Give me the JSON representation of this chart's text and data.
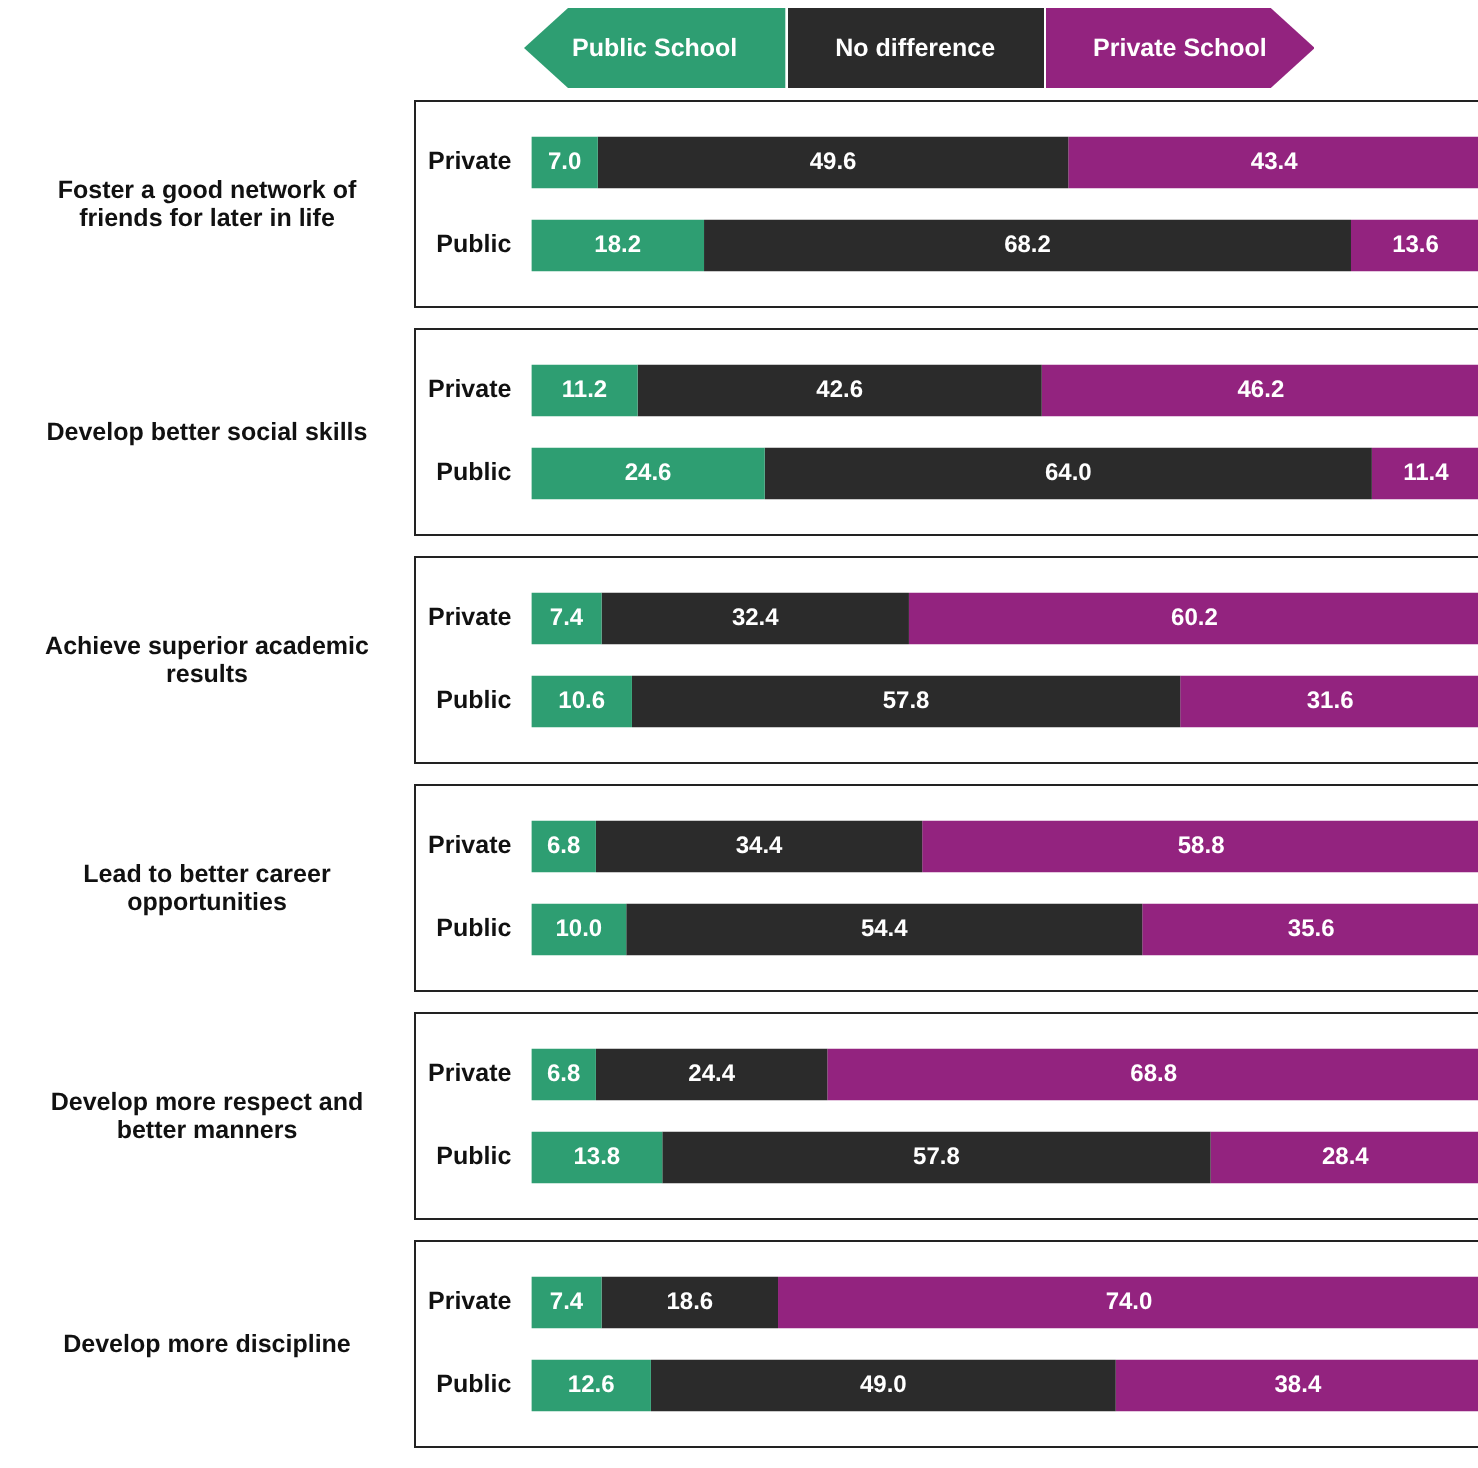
{
  "chart_data": [
    {
      "type": "bar",
      "orientation": "horizontal",
      "stacked": true,
      "title": "Foster a good network of friends for later in life",
      "categories": [
        "Private",
        "Public"
      ],
      "legend": "top",
      "tick_labels": "y",
      "series": [
        {
          "name": "Public School",
          "color": "#2e9e72",
          "values": [
            7.0,
            18.2
          ],
          "value_labels": [
            "7.0",
            "18.2"
          ]
        },
        {
          "name": "No difference",
          "color": "#2b2b2b",
          "values": [
            49.6,
            68.2
          ],
          "value_labels": [
            "49.6",
            "68.2"
          ]
        },
        {
          "name": "Private School",
          "color": "#93237f",
          "values": [
            43.4,
            13.6
          ],
          "value_labels": [
            "43.4",
            "13.6"
          ]
        }
      ]
    },
    {
      "type": "bar",
      "orientation": "horizontal",
      "stacked": true,
      "title": "Develop better social skills",
      "categories": [
        "Private",
        "Public"
      ],
      "tick_labels": "y",
      "series": [
        {
          "color": "#2e9e72",
          "values": [
            11.2,
            24.6
          ],
          "value_labels": [
            "11.2",
            "24.6"
          ]
        },
        {
          "color": "#2b2b2b",
          "values": [
            42.6,
            64.0
          ],
          "value_labels": [
            "42.6",
            "64.0"
          ]
        },
        {
          "color": "#93237f",
          "values": [
            46.2,
            11.4
          ],
          "value_labels": [
            "46.2",
            "11.4"
          ]
        }
      ]
    },
    {
      "type": "bar",
      "orientation": "horizontal",
      "stacked": true,
      "title": "Achieve superior academic results",
      "categories": [
        "Private",
        "Public"
      ],
      "tick_labels": "y",
      "series": [
        {
          "color": "#2e9e72",
          "values": [
            7.4,
            10.6
          ],
          "value_labels": [
            "7.4",
            "10.6"
          ]
        },
        {
          "color": "#2b2b2b",
          "values": [
            32.4,
            57.8
          ],
          "value_labels": [
            "32.4",
            "57.8"
          ]
        },
        {
          "color": "#93237f",
          "values": [
            60.2,
            31.6
          ],
          "value_labels": [
            "60.2",
            "31.6"
          ]
        }
      ]
    },
    {
      "type": "bar",
      "orientation": "horizontal",
      "stacked": true,
      "title": "Lead to better career opportunities",
      "categories": [
        "Private",
        "Public"
      ],
      "tick_labels": "y",
      "series": [
        {
          "color": "#2e9e72",
          "values": [
            6.8,
            10.0
          ],
          "value_labels": [
            "6.8",
            "10.0"
          ]
        },
        {
          "color": "#2b2b2b",
          "values": [
            34.4,
            54.4
          ],
          "value_labels": [
            "34.4",
            "54.4"
          ]
        },
        {
          "color": "#93237f",
          "values": [
            58.8,
            35.6
          ],
          "value_labels": [
            "58.8",
            "35.6"
          ]
        }
      ]
    },
    {
      "type": "bar",
      "orientation": "horizontal",
      "stacked": true,
      "title": "Develop more respect and better manners",
      "categories": [
        "Private",
        "Public"
      ],
      "tick_labels": "y",
      "series": [
        {
          "color": "#2e9e72",
          "values": [
            6.8,
            13.8
          ],
          "value_labels": [
            "6.8",
            "13.8"
          ]
        },
        {
          "color": "#2b2b2b",
          "values": [
            24.4,
            57.8
          ],
          "value_labels": [
            "24.4",
            "57.8"
          ]
        },
        {
          "color": "#93237f",
          "values": [
            68.8,
            28.4
          ],
          "value_labels": [
            "68.8",
            "28.4"
          ]
        }
      ]
    },
    {
      "type": "bar",
      "orientation": "horizontal",
      "stacked": true,
      "title": "Develop more discipline",
      "categories": [
        "Private",
        "Public"
      ],
      "tick_labels": "y",
      "series": [
        {
          "color": "#2e9e72",
          "values": [
            7.4,
            12.6
          ],
          "value_labels": [
            "7.4",
            "12.6"
          ]
        },
        {
          "color": "#2b2b2b",
          "values": [
            18.6,
            49.0
          ],
          "value_labels": [
            "18.6",
            "49.0"
          ]
        },
        {
          "color": "#93237f",
          "values": [
            74.0,
            38.4
          ],
          "value_labels": [
            "74.0",
            "38.4"
          ]
        }
      ]
    }
  ]
}
